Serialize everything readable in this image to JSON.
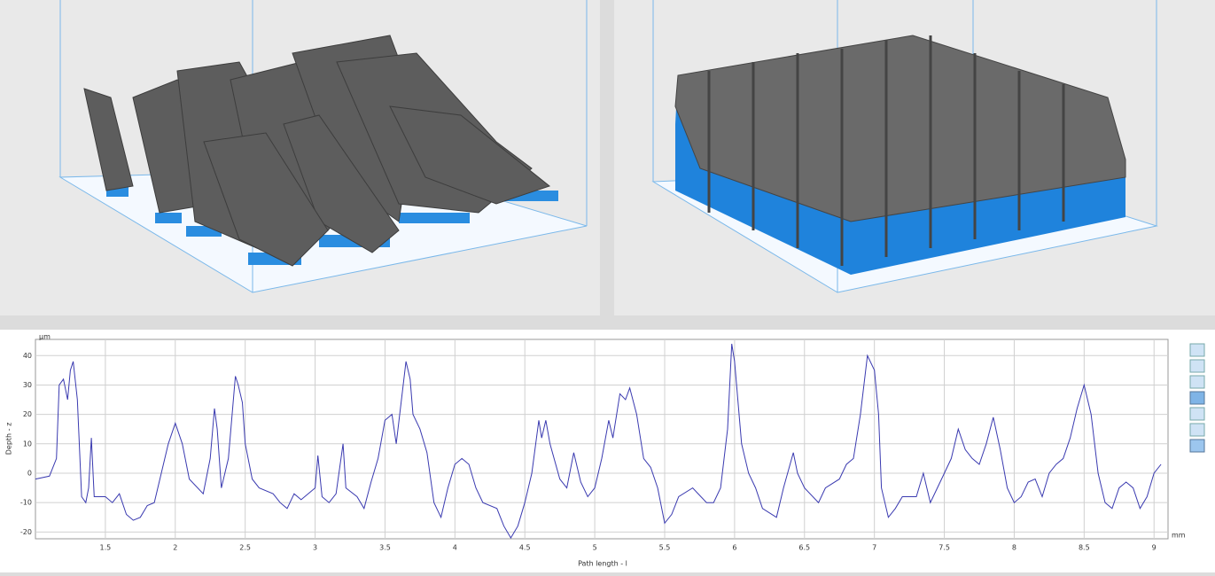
{
  "chart_data": {
    "type": "line",
    "y_unit": "µm",
    "x_unit": "mm",
    "ylabel": "Depth - z",
    "xlabel": "Path length - l",
    "xlim": [
      1.0,
      9.1
    ],
    "ylim": [
      -22.3,
      45.5
    ],
    "xticks": [
      1.5,
      2,
      2.5,
      3,
      3.5,
      4,
      4.5,
      5,
      5.5,
      6,
      6.5,
      7,
      7.5,
      8,
      8.5,
      9
    ],
    "yticks": [
      -20,
      -10,
      0,
      10,
      20,
      30,
      40
    ],
    "grid": true,
    "x": [
      1.0,
      1.1,
      1.15,
      1.17,
      1.2,
      1.23,
      1.25,
      1.27,
      1.3,
      1.33,
      1.36,
      1.38,
      1.4,
      1.42,
      1.5,
      1.55,
      1.6,
      1.65,
      1.7,
      1.75,
      1.8,
      1.85,
      1.9,
      1.95,
      2.0,
      2.05,
      2.1,
      2.2,
      2.25,
      2.28,
      2.3,
      2.33,
      2.38,
      2.43,
      2.45,
      2.48,
      2.5,
      2.55,
      2.6,
      2.7,
      2.75,
      2.8,
      2.85,
      2.9,
      3.0,
      3.02,
      3.05,
      3.1,
      3.15,
      3.2,
      3.22,
      3.3,
      3.35,
      3.4,
      3.45,
      3.5,
      3.55,
      3.58,
      3.65,
      3.68,
      3.7,
      3.75,
      3.8,
      3.85,
      3.9,
      3.95,
      4.0,
      4.05,
      4.1,
      4.15,
      4.2,
      4.3,
      4.35,
      4.4,
      4.45,
      4.5,
      4.55,
      4.6,
      4.62,
      4.65,
      4.68,
      4.75,
      4.8,
      4.85,
      4.9,
      4.95,
      5.0,
      5.05,
      5.1,
      5.13,
      5.18,
      5.22,
      5.25,
      5.3,
      5.35,
      5.4,
      5.45,
      5.5,
      5.55,
      5.6,
      5.7,
      5.8,
      5.85,
      5.9,
      5.95,
      5.98,
      6.0,
      6.05,
      6.1,
      6.15,
      6.2,
      6.3,
      6.35,
      6.42,
      6.45,
      6.5,
      6.6,
      6.65,
      6.75,
      6.8,
      6.85,
      6.9,
      6.95,
      7.0,
      7.03,
      7.05,
      7.1,
      7.15,
      7.2,
      7.3,
      7.35,
      7.4,
      7.45,
      7.5,
      7.55,
      7.6,
      7.65,
      7.7,
      7.75,
      7.8,
      7.85,
      7.9,
      7.95,
      8.0,
      8.05,
      8.1,
      8.15,
      8.2,
      8.25,
      8.3,
      8.35,
      8.4,
      8.45,
      8.5,
      8.55,
      8.6,
      8.65,
      8.7,
      8.75,
      8.8,
      8.85,
      8.9,
      8.95,
      9.0,
      9.05
    ],
    "series": [
      {
        "color": "#3a3ab0",
        "values": [
          -2,
          -1,
          5,
          30,
          32,
          25,
          35,
          38,
          25,
          -8,
          -10,
          -5,
          12,
          -8,
          -8,
          -10,
          -7,
          -14,
          -16,
          -15,
          -11,
          -10,
          0,
          10,
          17,
          10,
          -2,
          -7,
          5,
          22,
          15,
          -5,
          5,
          33,
          30,
          24,
          10,
          -2,
          -5,
          -7,
          -10,
          -12,
          -7,
          -9,
          -5,
          6,
          -8,
          -10,
          -7,
          10,
          -5,
          -8,
          -12,
          -3,
          5,
          18,
          20,
          10,
          38,
          32,
          20,
          15,
          7,
          -10,
          -15,
          -5,
          3,
          5,
          3,
          -5,
          -10,
          -12,
          -18,
          -22,
          -18,
          -10,
          0,
          18,
          12,
          18,
          10,
          -2,
          -5,
          7,
          -3,
          -8,
          -5,
          5,
          18,
          12,
          27,
          25,
          29,
          20,
          5,
          2,
          -5,
          -17,
          -14,
          -8,
          -5,
          -10,
          -10,
          -5,
          15,
          44,
          38,
          10,
          0,
          -5,
          -12,
          -15,
          -5,
          7,
          0,
          -5,
          -10,
          -5,
          -2,
          3,
          5,
          20,
          40,
          35,
          20,
          -5,
          -15,
          -12,
          -8,
          -8,
          0,
          -10,
          -5,
          0,
          5,
          15,
          8,
          5,
          3,
          10,
          19,
          8,
          -5,
          -10,
          -8,
          -3,
          -2,
          -8,
          0,
          3,
          5,
          12,
          22,
          30,
          20,
          0,
          -10,
          -12,
          -5,
          -3,
          -5,
          -12,
          -8,
          0,
          3
        ]
      }
    ]
  }
}
